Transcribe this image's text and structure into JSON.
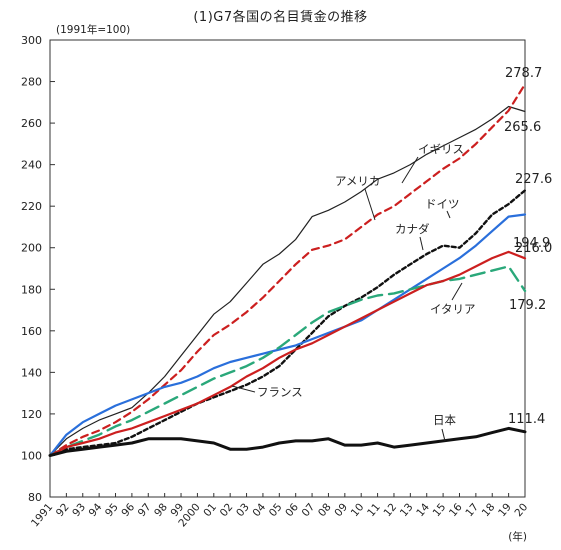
{
  "chart_data": {
    "type": "line",
    "title": "(1)G7各国の名目賃金の推移",
    "ylabel": "(1991年=100)",
    "xlabel": "(年)",
    "ylim": [
      80,
      300
    ],
    "yticks": [
      80,
      100,
      120,
      140,
      160,
      180,
      200,
      220,
      240,
      260,
      280,
      300
    ],
    "x": [
      "1991",
      "92",
      "93",
      "94",
      "95",
      "96",
      "97",
      "98",
      "99",
      "2000",
      "01",
      "02",
      "03",
      "04",
      "05",
      "06",
      "07",
      "08",
      "09",
      "10",
      "11",
      "12",
      "13",
      "14",
      "15",
      "16",
      "17",
      "18",
      "19",
      "20"
    ],
    "series": [
      {
        "name": "イギリス",
        "color": "#222222",
        "dash": "solid",
        "width": 1.2,
        "values": [
          100,
          108,
          113,
          117,
          120,
          123,
          130,
          138,
          148,
          158,
          168,
          174,
          183,
          192,
          197,
          204,
          215,
          218,
          222,
          227,
          233,
          236,
          240,
          245,
          249,
          253,
          257,
          262,
          268,
          265.6
        ],
        "end_label": "265.6"
      },
      {
        "name": "アメリカ",
        "color": "#cc1f1f",
        "dash": "dash",
        "width": 2.2,
        "values": [
          100,
          105,
          109,
          112,
          116,
          121,
          127,
          134,
          141,
          150,
          158,
          163,
          169,
          176,
          184,
          192,
          199,
          201,
          204,
          210,
          216,
          220,
          226,
          232,
          238,
          243,
          250,
          258,
          266,
          278.7
        ],
        "end_label": "278.7"
      },
      {
        "name": "ドイツ",
        "color": "#111111",
        "dash": "dot",
        "width": 2.4,
        "values": [
          100,
          103,
          104,
          105,
          106,
          109,
          113,
          117,
          121,
          125,
          128,
          131,
          134,
          138,
          143,
          151,
          159,
          167,
          172,
          176,
          181,
          187,
          192,
          197,
          201,
          200,
          207,
          216,
          221,
          227.6
        ],
        "end_label": "227.6"
      },
      {
        "name": "カナダ",
        "color": "#2a6fdb",
        "dash": "solid",
        "width": 2.2,
        "values": [
          100,
          110,
          116,
          120,
          124,
          127,
          130,
          133,
          135,
          138,
          142,
          145,
          147,
          149,
          151,
          153,
          156,
          159,
          162,
          165,
          170,
          175,
          180,
          185,
          190,
          195,
          201,
          208,
          215,
          216.0
        ],
        "end_label": "216.0"
      },
      {
        "name": "イタリア",
        "color": "#2aa87a",
        "dash": "longdash",
        "width": 2.4,
        "values": [
          100,
          104,
          107,
          110,
          114,
          117,
          121,
          125,
          129,
          133,
          137,
          140,
          143,
          147,
          152,
          158,
          164,
          169,
          172,
          175,
          177,
          178,
          180,
          182,
          184,
          185,
          187,
          189,
          191,
          179.2
        ],
        "end_label": "179.2"
      },
      {
        "name": "フランス",
        "color": "#cc1f1f",
        "dash": "solid",
        "width": 2.2,
        "values": [
          100,
          104,
          106,
          108,
          111,
          113,
          116,
          119,
          122,
          125,
          129,
          133,
          138,
          142,
          147,
          151,
          154,
          158,
          162,
          166,
          170,
          174,
          178,
          182,
          184,
          187,
          191,
          195,
          198,
          194.9
        ],
        "end_label": "194.9"
      },
      {
        "name": "日本",
        "color": "#111111",
        "dash": "solid",
        "width": 3.0,
        "values": [
          100,
          102,
          103,
          104,
          105,
          106,
          108,
          108,
          108,
          107,
          106,
          103,
          103,
          104,
          106,
          107,
          107,
          108,
          105,
          105,
          106,
          104,
          105,
          106,
          107,
          108,
          109,
          111,
          113,
          111.4
        ],
        "end_label": "111.4"
      }
    ]
  }
}
